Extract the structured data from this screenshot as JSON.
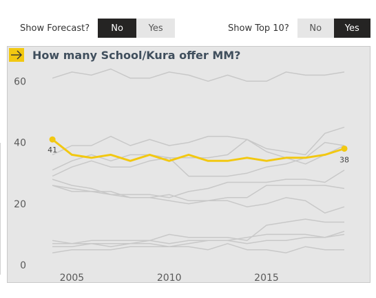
{
  "controls": {
    "forecast": {
      "label": "Show Forecast?",
      "options": [
        "No",
        "Yes"
      ],
      "selected": "No"
    },
    "top10": {
      "label": "Show Top 10?",
      "options": [
        "No",
        "Yes"
      ],
      "selected": "Yes"
    }
  },
  "colors": {
    "highlight": "#f2c811",
    "background_series": "#c8c8c8",
    "axis_text": "#595959"
  },
  "icons": {
    "header": "arrow-right-icon"
  },
  "chart_data": {
    "type": "line",
    "title": "How many School/Kura offer MM?",
    "xlabel": "",
    "ylabel": "",
    "xlim": [
      2003.5,
      2019.6
    ],
    "ylim": [
      0,
      65
    ],
    "x_ticks": [
      2005,
      2010,
      2015
    ],
    "y_ticks": [
      0,
      20,
      40,
      60
    ],
    "gridlines": false,
    "x": [
      2004,
      2005,
      2006,
      2007,
      2008,
      2009,
      2010,
      2011,
      2012,
      2013,
      2014,
      2015,
      2016,
      2017,
      2018,
      2019
    ],
    "highlight_series": {
      "values": [
        41,
        36,
        35,
        36,
        34,
        36,
        34,
        36,
        34,
        34,
        35,
        34,
        35,
        35,
        36,
        38
      ],
      "start_label": "41",
      "end_label": "38"
    },
    "series": [
      {
        "values": [
          61,
          63,
          62,
          64,
          61,
          61,
          63,
          62,
          60,
          62,
          60,
          60,
          63,
          62,
          62,
          63
        ]
      },
      {
        "values": [
          36,
          39,
          39,
          42,
          39,
          41,
          39,
          40,
          42,
          42,
          41,
          38,
          37,
          36,
          43,
          45
        ]
      },
      {
        "values": [
          31,
          34,
          36,
          34,
          36,
          36,
          35,
          35,
          35,
          36,
          41,
          37,
          35,
          33,
          36,
          39
        ]
      },
      {
        "values": [
          29,
          32,
          34,
          32,
          32,
          34,
          35,
          29,
          29,
          29,
          30,
          32,
          33,
          35,
          40,
          39
        ]
      },
      {
        "values": [
          28,
          26,
          25,
          23,
          23,
          23,
          22,
          24,
          25,
          27,
          27,
          27,
          28,
          28,
          27,
          31
        ]
      },
      {
        "values": [
          26,
          24,
          24,
          24,
          22,
          22,
          23,
          21,
          21,
          22,
          22,
          26,
          26,
          26,
          26,
          25
        ]
      },
      {
        "values": [
          26,
          25,
          24,
          23,
          22,
          22,
          21,
          20,
          21,
          21,
          19,
          20,
          22,
          21,
          17,
          19
        ]
      },
      {
        "values": [
          8,
          7,
          8,
          8,
          8,
          8,
          10,
          9,
          9,
          9,
          8,
          13,
          14,
          15,
          14,
          14
        ]
      },
      {
        "values": [
          7,
          7,
          7,
          7,
          7,
          8,
          7,
          8,
          8,
          8,
          9,
          10,
          10,
          10,
          9,
          10
        ]
      },
      {
        "values": [
          6,
          6,
          7,
          6,
          7,
          7,
          6,
          7,
          8,
          8,
          7,
          8,
          8,
          9,
          9,
          11
        ]
      },
      {
        "values": [
          4,
          5,
          5,
          5,
          6,
          6,
          6,
          6,
          5,
          7,
          5,
          5,
          4,
          6,
          5,
          5
        ]
      }
    ]
  }
}
